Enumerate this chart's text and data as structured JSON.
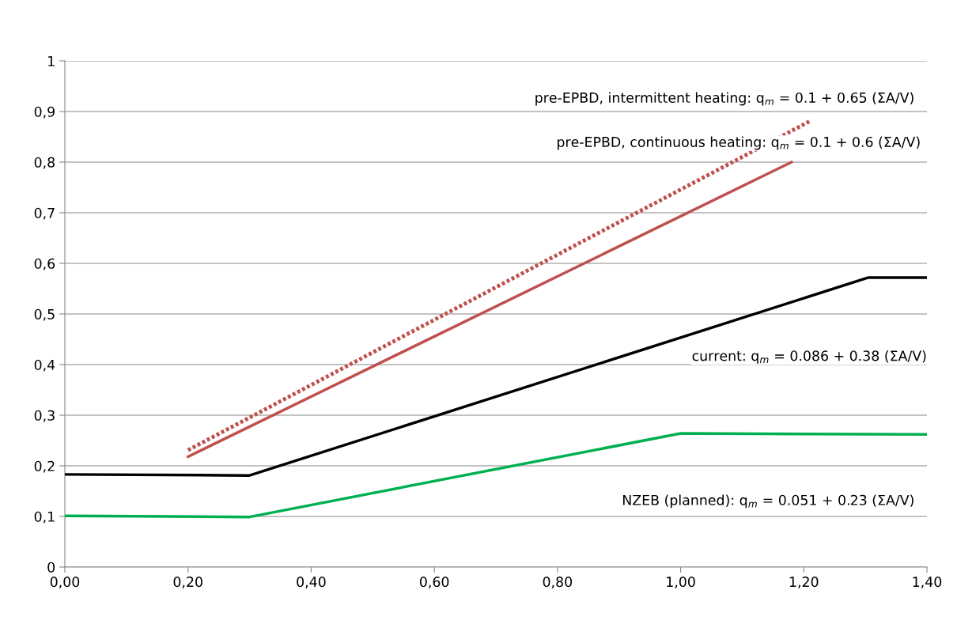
{
  "chart_data": {
    "type": "line",
    "series": [
      {
        "color": "#00b050",
        "x": [
          0,
          0.3,
          1.0,
          1.4
        ],
        "values": [
          0.101,
          0.099,
          0.264,
          0.262
        ],
        "line_style": "solid"
      },
      {
        "name": "current: q$_{m}$ = 0.086 + 0.38 (ΣA/V)",
        "color": "#000000",
        "x": [
          0,
          0.3,
          1.305,
          1.4
        ],
        "values": [
          0.183,
          0.181,
          0.572,
          0.572
        ],
        "line_style": "solid"
      },
      {
        "name": "pre-EPBD, continuous heating: q$_{m}$ = 0.1 + 0.6 (ΣA/V)",
        "color": "#c0504d",
        "x": [
          0.2,
          1.18
        ],
        "values": [
          0.218,
          0.8
        ],
        "line_style": "solid"
      },
      {
        "name": "pre-EPBD, intermittent heating: q$_{m}$ = 0.1 + 0.65 (ΣA/V)",
        "color": "#c0504d",
        "x": [
          0.2,
          1.21
        ],
        "values": [
          0.231,
          0.881
        ],
        "line_style": "dotted"
      }
    ],
    "annotations": [
      "NZEB (planned): q$_{m}$ = 0.051 + 0.23 (ΣA/V)"
    ],
    "xlim": [
      0,
      1.4
    ],
    "xticks": [
      {
        "value": 0,
        "label": "0,00"
      },
      {
        "value": 0.2,
        "label": "0,20"
      },
      {
        "value": 0.4,
        "label": "0,40"
      },
      {
        "value": 0.6,
        "label": "0,60"
      },
      {
        "value": 0.8,
        "label": "0,80"
      },
      {
        "value": 1.0,
        "label": "1,00"
      },
      {
        "value": 1.2,
        "label": "1,20"
      },
      {
        "value": 1.4,
        "label": "1,40"
      }
    ],
    "ylim": [
      0,
      1
    ],
    "yticks": [
      0,
      {
        "value": 0.1,
        "label": "0,1"
      },
      {
        "value": 0.2,
        "label": "0,2"
      },
      {
        "value": 0.3,
        "label": "0,3"
      },
      {
        "value": 0.4,
        "label": "0,4"
      },
      {
        "value": 0.5,
        "label": "0,5"
      },
      {
        "value": 0.6,
        "label": "0,6"
      },
      {
        "value": 0.7,
        "label": "0,7"
      },
      {
        "value": 0.8,
        "label": "0,8"
      },
      {
        "value": 0.9,
        "label": "0,9"
      },
      1
    ],
    "grid": "y"
  }
}
